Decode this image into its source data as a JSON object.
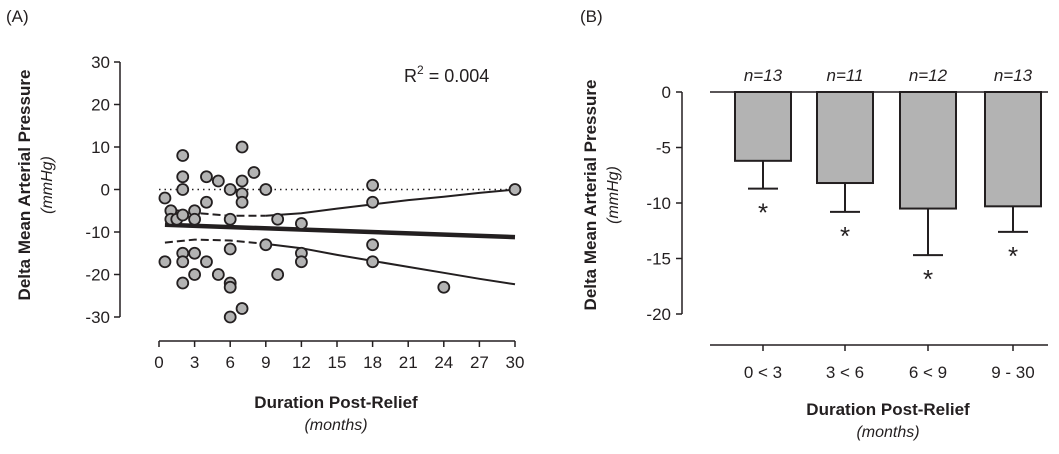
{
  "chart_data": [
    {
      "panel_label": "(A)",
      "type": "scatter",
      "xlabel": "Duration Post-Relief",
      "xlabel_units": "(months)",
      "ylabel": "Delta Mean Arterial Pressure",
      "ylabel_units": "(mmHg)",
      "xlim": [
        0,
        30
      ],
      "ylim": [
        -30,
        30
      ],
      "xticks": [
        0,
        3,
        6,
        9,
        12,
        15,
        18,
        21,
        24,
        27,
        30
      ],
      "yticks": [
        -30,
        -20,
        -10,
        0,
        10,
        20,
        30
      ],
      "annotation": {
        "prefix": "R",
        "sup": "2",
        "suffix": " = 0.004"
      },
      "reference_line_y": 0,
      "points": [
        {
          "x": 0.5,
          "y": -2
        },
        {
          "x": 0.5,
          "y": -17
        },
        {
          "x": 1,
          "y": -5
        },
        {
          "x": 1,
          "y": -7
        },
        {
          "x": 1.5,
          "y": -7
        },
        {
          "x": 2,
          "y": 8
        },
        {
          "x": 2,
          "y": 3
        },
        {
          "x": 2,
          "y": 0
        },
        {
          "x": 2,
          "y": -6
        },
        {
          "x": 2,
          "y": -15
        },
        {
          "x": 2,
          "y": -17
        },
        {
          "x": 2,
          "y": -22
        },
        {
          "x": 3,
          "y": -5
        },
        {
          "x": 3,
          "y": -7
        },
        {
          "x": 3,
          "y": -15
        },
        {
          "x": 3,
          "y": -20
        },
        {
          "x": 4,
          "y": 3
        },
        {
          "x": 4,
          "y": -3
        },
        {
          "x": 4,
          "y": -17
        },
        {
          "x": 5,
          "y": 2
        },
        {
          "x": 5,
          "y": -20
        },
        {
          "x": 6,
          "y": 0
        },
        {
          "x": 6,
          "y": -7
        },
        {
          "x": 6,
          "y": -14
        },
        {
          "x": 6,
          "y": -22
        },
        {
          "x": 6,
          "y": -23
        },
        {
          "x": 6,
          "y": -30
        },
        {
          "x": 7,
          "y": 10
        },
        {
          "x": 7,
          "y": 2
        },
        {
          "x": 7,
          "y": -1
        },
        {
          "x": 7,
          "y": -3
        },
        {
          "x": 7,
          "y": -28
        },
        {
          "x": 8,
          "y": 4
        },
        {
          "x": 9,
          "y": 0
        },
        {
          "x": 9,
          "y": -13
        },
        {
          "x": 10,
          "y": -7
        },
        {
          "x": 10,
          "y": -20
        },
        {
          "x": 12,
          "y": -8
        },
        {
          "x": 12,
          "y": -15
        },
        {
          "x": 12,
          "y": -17
        },
        {
          "x": 18,
          "y": 1
        },
        {
          "x": 18,
          "y": -3
        },
        {
          "x": 18,
          "y": -13
        },
        {
          "x": 18,
          "y": -17
        },
        {
          "x": 24,
          "y": -23
        },
        {
          "x": 30,
          "y": 0
        }
      ],
      "regression_line": [
        [
          0.5,
          -8.3
        ],
        [
          30,
          -11.2
        ]
      ],
      "ci_upper": [
        [
          0.5,
          -4.5
        ],
        [
          3,
          -5.5
        ],
        [
          6,
          -6.2
        ],
        [
          9,
          -6.2
        ],
        [
          12,
          -5.6
        ],
        [
          15,
          -4.5
        ],
        [
          18,
          -3.5
        ],
        [
          21,
          -2.5
        ],
        [
          24,
          -1.7
        ],
        [
          27,
          -0.8
        ],
        [
          30,
          0
        ]
      ],
      "ci_lower": [
        [
          0.5,
          -12.5
        ],
        [
          3,
          -11.8
        ],
        [
          6,
          -12.0
        ],
        [
          9,
          -12.8
        ],
        [
          12,
          -13.8
        ],
        [
          15,
          -15.4
        ],
        [
          18,
          -16.8
        ],
        [
          21,
          -18.2
        ],
        [
          24,
          -19.6
        ],
        [
          27,
          -21.0
        ],
        [
          30,
          -22.3
        ]
      ],
      "colors": {
        "marker_fill": "#b3b3b3",
        "marker_edge": "#231f20",
        "line": "#231f20"
      }
    },
    {
      "panel_label": "(B)",
      "type": "bar",
      "xlabel": "Duration Post-Relief",
      "xlabel_units": "(months)",
      "ylabel": "Delta Mean Arterial Pressure",
      "ylabel_units": "(mmHg)",
      "ylim": [
        -20,
        0
      ],
      "yticks": [
        0,
        -5,
        -10,
        -15,
        -20
      ],
      "categories": [
        "0 < 3",
        "3 < 6",
        "6 < 9",
        "9 - 30"
      ],
      "values": [
        -6.2,
        -8.2,
        -10.5,
        -10.3
      ],
      "error": [
        2.5,
        2.6,
        4.2,
        2.3
      ],
      "n_labels": [
        "n=13",
        "n=11",
        "n=12",
        "n=13"
      ],
      "significance": [
        "*",
        "*",
        "*",
        "*"
      ],
      "colors": {
        "bar_fill": "#b3b3b3",
        "bar_edge": "#231f20"
      }
    }
  ]
}
